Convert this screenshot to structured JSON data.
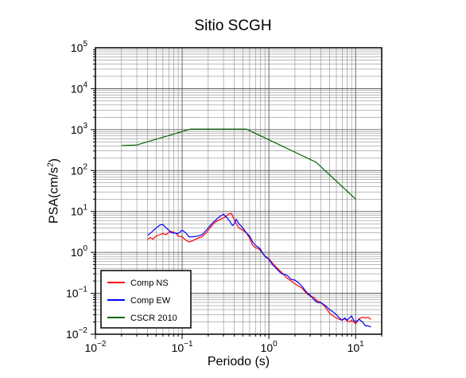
{
  "chart_data": {
    "type": "line",
    "title": "Sitio SCGH",
    "xlabel": "Periodo (s)",
    "ylabel_prefix": "PSA(cm/s",
    "ylabel_sup": "2",
    "ylabel_suffix": ")",
    "x_scale": "log",
    "y_scale": "log",
    "xlim": [
      0.01,
      20
    ],
    "ylim": [
      0.01,
      100000
    ],
    "grid": true,
    "legend_position": "bottom-left",
    "x_ticks": [
      {
        "value": 0.01,
        "base": "10",
        "exp": "−2"
      },
      {
        "value": 0.1,
        "base": "10",
        "exp": "−1"
      },
      {
        "value": 1,
        "base": "10",
        "exp": "0"
      },
      {
        "value": 10,
        "base": "10",
        "exp": "1"
      }
    ],
    "y_ticks": [
      {
        "value": 0.01,
        "base": "10",
        "exp": "−2"
      },
      {
        "value": 0.1,
        "base": "10",
        "exp": "−1"
      },
      {
        "value": 1,
        "base": "10",
        "exp": "0"
      },
      {
        "value": 10,
        "base": "10",
        "exp": "1"
      },
      {
        "value": 100,
        "base": "10",
        "exp": "2"
      },
      {
        "value": 1000,
        "base": "10",
        "exp": "3"
      },
      {
        "value": 10000,
        "base": "10",
        "exp": "4"
      },
      {
        "value": 100000,
        "base": "10",
        "exp": "5"
      }
    ],
    "series": [
      {
        "name": "Comp NS",
        "color": "#ff0000",
        "points": [
          [
            0.04,
            2.1
          ],
          [
            0.043,
            2.3
          ],
          [
            0.046,
            2.1
          ],
          [
            0.05,
            2.5
          ],
          [
            0.055,
            2.7
          ],
          [
            0.06,
            2.9
          ],
          [
            0.065,
            2.7
          ],
          [
            0.07,
            3.1
          ],
          [
            0.075,
            3.3
          ],
          [
            0.08,
            3.1
          ],
          [
            0.085,
            2.9
          ],
          [
            0.09,
            2.5
          ],
          [
            0.1,
            2.4
          ],
          [
            0.11,
            2.0
          ],
          [
            0.12,
            1.8
          ],
          [
            0.13,
            1.9
          ],
          [
            0.15,
            2.2
          ],
          [
            0.17,
            2.4
          ],
          [
            0.19,
            3.0
          ],
          [
            0.21,
            4.0
          ],
          [
            0.23,
            5.0
          ],
          [
            0.25,
            5.8
          ],
          [
            0.28,
            6.5
          ],
          [
            0.3,
            7.0
          ],
          [
            0.33,
            8.0
          ],
          [
            0.35,
            8.8
          ],
          [
            0.37,
            9.0
          ],
          [
            0.4,
            6.2
          ],
          [
            0.42,
            5.0
          ],
          [
            0.45,
            4.0
          ],
          [
            0.5,
            3.5
          ],
          [
            0.55,
            3.0
          ],
          [
            0.6,
            2.2
          ],
          [
            0.65,
            1.5
          ],
          [
            0.7,
            1.3
          ],
          [
            0.75,
            1.25
          ],
          [
            0.8,
            1.1
          ],
          [
            0.85,
            0.95
          ],
          [
            0.9,
            0.82
          ],
          [
            1.0,
            0.7
          ],
          [
            1.1,
            0.55
          ],
          [
            1.2,
            0.45
          ],
          [
            1.3,
            0.38
          ],
          [
            1.4,
            0.33
          ],
          [
            1.5,
            0.28
          ],
          [
            1.6,
            0.24
          ],
          [
            1.7,
            0.22
          ],
          [
            1.8,
            0.2
          ],
          [
            2.0,
            0.17
          ],
          [
            2.2,
            0.15
          ],
          [
            2.4,
            0.135
          ],
          [
            2.6,
            0.11
          ],
          [
            2.8,
            0.095
          ],
          [
            3.0,
            0.085
          ],
          [
            3.3,
            0.08
          ],
          [
            3.6,
            0.065
          ],
          [
            4.0,
            0.06
          ],
          [
            4.5,
            0.045
          ],
          [
            5.0,
            0.033
          ],
          [
            5.5,
            0.028
          ],
          [
            6.0,
            0.025
          ],
          [
            6.5,
            0.023
          ],
          [
            7.0,
            0.022
          ],
          [
            7.5,
            0.024
          ],
          [
            8.0,
            0.021
          ],
          [
            8.5,
            0.02
          ],
          [
            9.0,
            0.022
          ],
          [
            9.5,
            0.02
          ],
          [
            10.0,
            0.018
          ],
          [
            11.0,
            0.024
          ],
          [
            12.0,
            0.026
          ],
          [
            13.0,
            0.025
          ],
          [
            14.0,
            0.026
          ],
          [
            15.0,
            0.023
          ]
        ]
      },
      {
        "name": "Comp EW",
        "color": "#0000ff",
        "points": [
          [
            0.04,
            2.6
          ],
          [
            0.045,
            3.2
          ],
          [
            0.05,
            3.9
          ],
          [
            0.055,
            4.6
          ],
          [
            0.06,
            4.8
          ],
          [
            0.065,
            4.0
          ],
          [
            0.07,
            3.5
          ],
          [
            0.075,
            3.0
          ],
          [
            0.08,
            3.0
          ],
          [
            0.09,
            2.9
          ],
          [
            0.1,
            3.5
          ],
          [
            0.11,
            3.0
          ],
          [
            0.12,
            2.4
          ],
          [
            0.13,
            2.4
          ],
          [
            0.15,
            2.5
          ],
          [
            0.17,
            2.7
          ],
          [
            0.19,
            3.5
          ],
          [
            0.21,
            4.5
          ],
          [
            0.23,
            5.5
          ],
          [
            0.25,
            6.5
          ],
          [
            0.27,
            7.5
          ],
          [
            0.3,
            8.5
          ],
          [
            0.32,
            7.5
          ],
          [
            0.35,
            6.0
          ],
          [
            0.38,
            4.5
          ],
          [
            0.4,
            5.0
          ],
          [
            0.42,
            6.5
          ],
          [
            0.45,
            5.0
          ],
          [
            0.5,
            4.0
          ],
          [
            0.55,
            3.0
          ],
          [
            0.6,
            2.5
          ],
          [
            0.65,
            1.8
          ],
          [
            0.7,
            1.5
          ],
          [
            0.75,
            1.35
          ],
          [
            0.8,
            1.2
          ],
          [
            0.85,
            0.95
          ],
          [
            0.9,
            0.8
          ],
          [
            1.0,
            0.68
          ],
          [
            1.1,
            0.5
          ],
          [
            1.2,
            0.42
          ],
          [
            1.3,
            0.35
          ],
          [
            1.4,
            0.3
          ],
          [
            1.5,
            0.29
          ],
          [
            1.6,
            0.28
          ],
          [
            1.7,
            0.25
          ],
          [
            1.8,
            0.22
          ],
          [
            2.0,
            0.21
          ],
          [
            2.2,
            0.18
          ],
          [
            2.4,
            0.15
          ],
          [
            2.6,
            0.12
          ],
          [
            2.8,
            0.1
          ],
          [
            3.0,
            0.09
          ],
          [
            3.3,
            0.07
          ],
          [
            3.6,
            0.06
          ],
          [
            4.0,
            0.058
          ],
          [
            4.5,
            0.05
          ],
          [
            5.0,
            0.04
          ],
          [
            5.5,
            0.035
          ],
          [
            6.0,
            0.03
          ],
          [
            6.5,
            0.025
          ],
          [
            7.0,
            0.022
          ],
          [
            7.5,
            0.025
          ],
          [
            8.0,
            0.022
          ],
          [
            8.5,
            0.025
          ],
          [
            9.0,
            0.028
          ],
          [
            9.5,
            0.022
          ],
          [
            10.0,
            0.02
          ],
          [
            11.0,
            0.023
          ],
          [
            12.0,
            0.02
          ],
          [
            13.0,
            0.016
          ],
          [
            14.0,
            0.016
          ],
          [
            15.0,
            0.015
          ]
        ]
      },
      {
        "name": "CSCR 2010",
        "color": "#006400",
        "points": [
          [
            0.02,
            410
          ],
          [
            0.03,
            420
          ],
          [
            0.125,
            1030
          ],
          [
            0.55,
            1030
          ],
          [
            3.5,
            160
          ],
          [
            10.0,
            20
          ]
        ]
      }
    ]
  }
}
